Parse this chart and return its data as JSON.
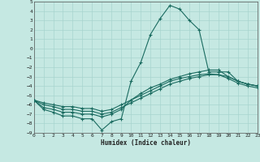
{
  "xlabel": "Humidex (Indice chaleur)",
  "xlim": [
    0,
    23
  ],
  "ylim": [
    -9,
    5
  ],
  "yticks": [
    5,
    4,
    3,
    2,
    1,
    0,
    -1,
    -2,
    -3,
    -4,
    -5,
    -6,
    -7,
    -8,
    -9
  ],
  "xticks": [
    0,
    1,
    2,
    3,
    4,
    5,
    6,
    7,
    8,
    9,
    10,
    11,
    12,
    13,
    14,
    15,
    16,
    17,
    18,
    19,
    20,
    21,
    22,
    23
  ],
  "bg_color": "#c5e8e2",
  "grid_color": "#a8d4ce",
  "line_color": "#1a6b60",
  "line1_x": [
    0,
    1,
    2,
    3,
    4,
    5,
    6,
    7,
    8,
    9,
    10,
    11,
    12,
    13,
    14,
    15,
    16,
    17,
    18,
    19,
    20,
    21,
    22,
    23
  ],
  "line1_y": [
    -5.5,
    -6.5,
    -6.8,
    -7.2,
    -7.2,
    -7.5,
    -7.5,
    -8.7,
    -7.8,
    -7.5,
    -3.5,
    -1.5,
    1.5,
    3.2,
    4.6,
    4.2,
    3.0,
    2.0,
    -2.5,
    -2.5,
    -2.5,
    -3.5,
    -3.8,
    -4.0
  ],
  "line2_x": [
    0,
    1,
    2,
    3,
    4,
    5,
    6,
    7,
    8,
    9,
    10,
    11,
    12,
    13,
    14,
    15,
    16,
    17,
    18,
    19,
    20,
    21,
    22,
    23
  ],
  "line2_y": [
    -5.5,
    -6.3,
    -6.5,
    -6.8,
    -6.8,
    -7.0,
    -7.0,
    -7.3,
    -7.0,
    -6.5,
    -5.5,
    -4.8,
    -4.2,
    -3.8,
    -3.3,
    -3.0,
    -2.7,
    -2.5,
    -2.3,
    -2.3,
    -3.0,
    -3.5,
    -3.8,
    -4.0
  ],
  "line3_x": [
    0,
    1,
    2,
    3,
    4,
    5,
    6,
    7,
    8,
    9,
    10,
    11,
    12,
    13,
    14,
    15,
    16,
    17,
    18,
    19,
    20,
    21,
    22,
    23
  ],
  "line3_y": [
    -5.5,
    -6.0,
    -6.2,
    -6.5,
    -6.5,
    -6.7,
    -6.7,
    -7.0,
    -6.8,
    -6.3,
    -5.8,
    -5.3,
    -4.8,
    -4.3,
    -3.8,
    -3.5,
    -3.2,
    -3.0,
    -2.8,
    -2.8,
    -3.2,
    -3.7,
    -4.0,
    -4.2
  ],
  "line4_x": [
    0,
    1,
    2,
    3,
    4,
    5,
    6,
    7,
    8,
    9,
    10,
    11,
    12,
    13,
    14,
    15,
    16,
    17,
    18,
    19,
    20,
    21,
    22,
    23
  ],
  "line4_y": [
    -5.5,
    -5.8,
    -6.0,
    -6.2,
    -6.2,
    -6.4,
    -6.4,
    -6.7,
    -6.5,
    -6.0,
    -5.5,
    -5.0,
    -4.5,
    -4.0,
    -3.5,
    -3.2,
    -3.0,
    -2.8,
    -2.7,
    -2.8,
    -3.0,
    -3.5,
    -3.8,
    -4.0
  ]
}
